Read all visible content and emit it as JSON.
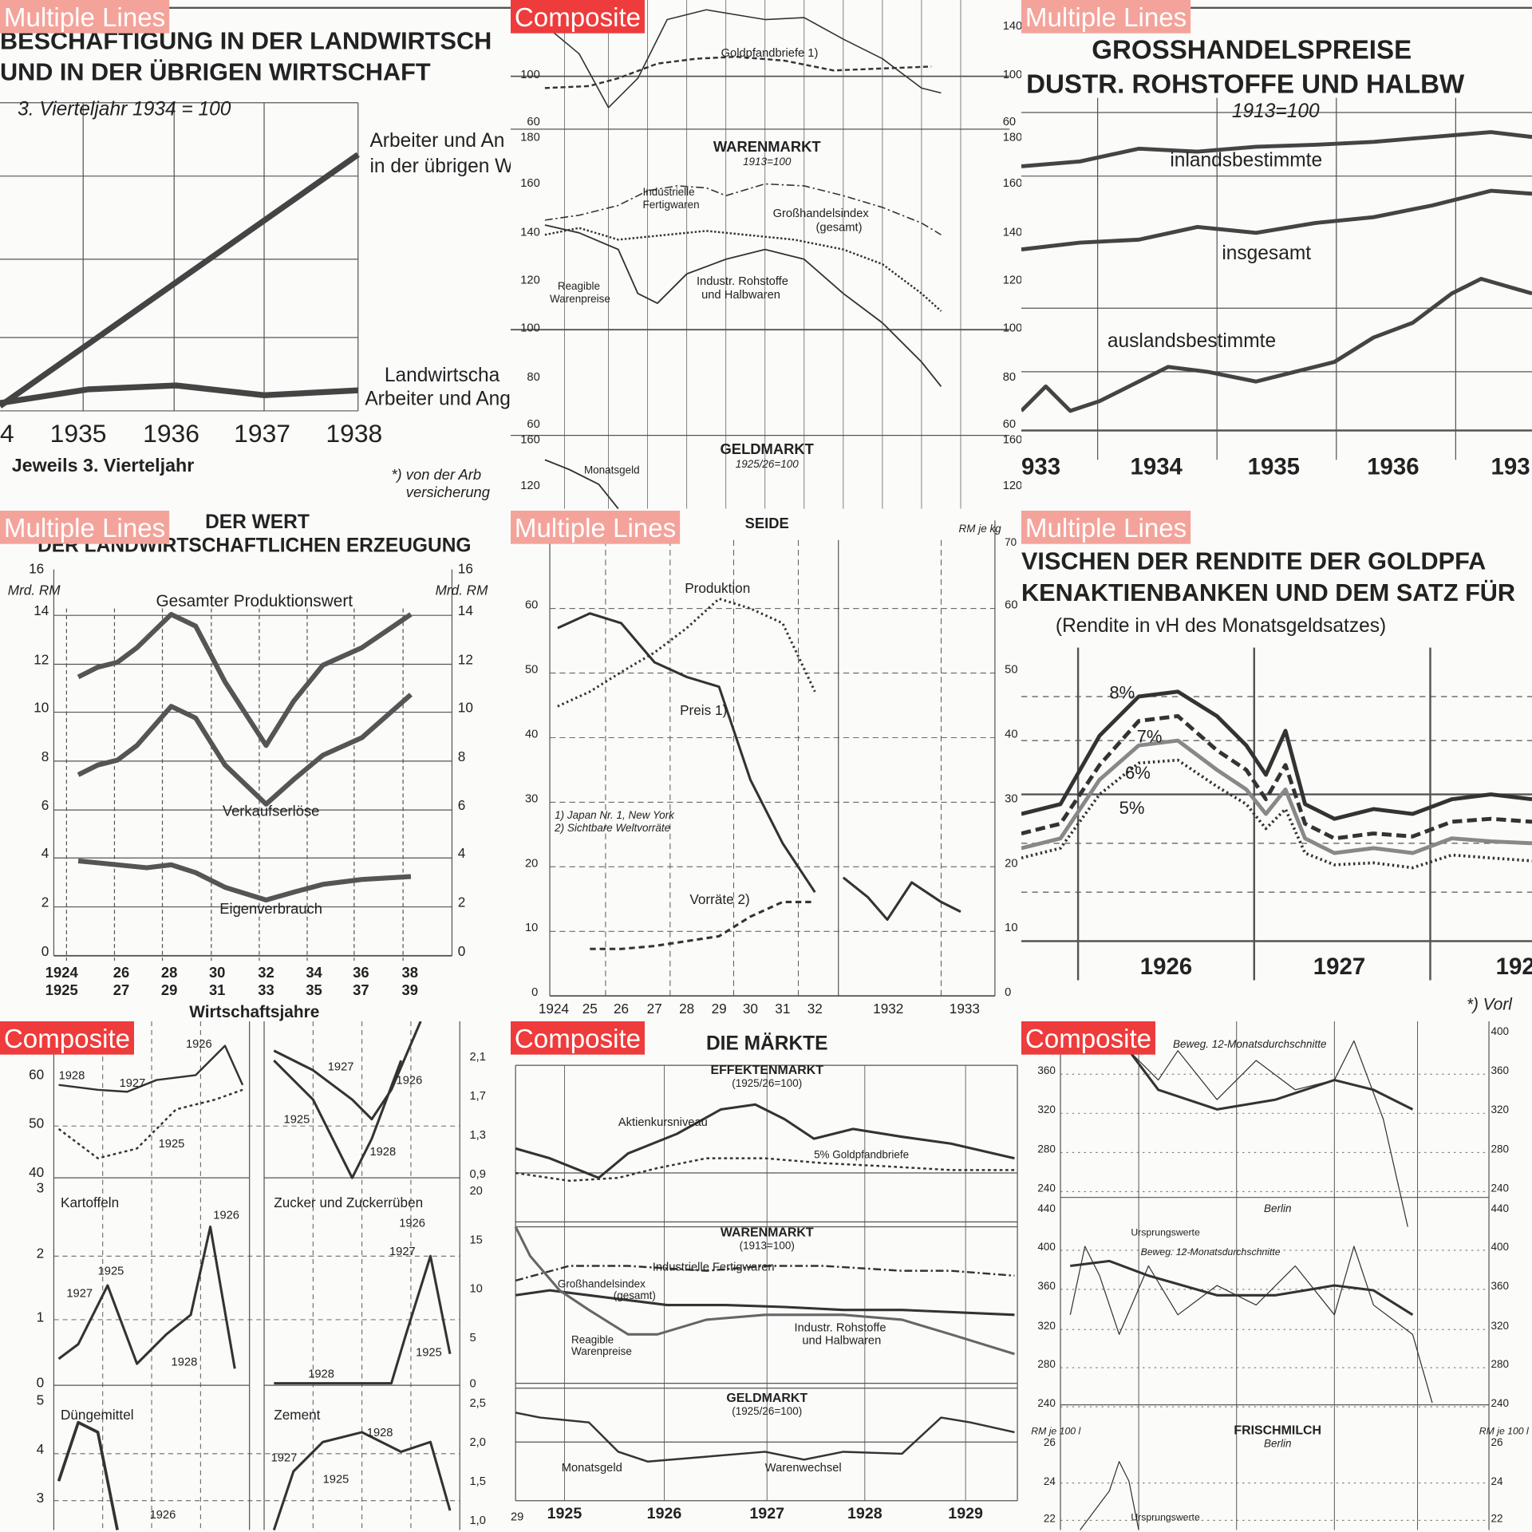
{
  "tiles": [
    {
      "label": "Multiple Lines",
      "label_color": "#f4a39b",
      "texts": [
        "BESCHÄFTIGUNG IN DER LANDWIRTSCH",
        "UND IN DER ÜBRIGEN WIRTSCHAFT",
        "3. Vierteljahr 1934 = 100",
        "Arbeiter und An",
        "in der übrigen W",
        "Landwirtscha",
        "Arbeiter und Ang",
        "4",
        "1935",
        "1936",
        "1937",
        "1938",
        "Jeweils 3. Vierteljahr",
        "*) von der Arb",
        "versicherung"
      ]
    },
    {
      "label": "Composite",
      "label_color": "#ee3b3b",
      "texts": [
        "Goldpfandbriefe 1)",
        "140",
        "100",
        "60",
        "100",
        "60",
        "WARENMARKT",
        "1913=100",
        "Industrielle",
        "Fertigwaren",
        "Großhandelsindex",
        "(gesamt)",
        "Reagible",
        "Warenpreise",
        "Industr. Rohstoffe",
        "und Halbwaren",
        "180",
        "160",
        "140",
        "120",
        "100",
        "80",
        "60",
        "180",
        "160",
        "140",
        "120",
        "100",
        "80",
        "60",
        "GELDMARKT",
        "1925/26=100",
        "Monatsgeld",
        "160",
        "120",
        "160",
        "120"
      ]
    },
    {
      "label": "Multiple Lines",
      "label_color": "#f4a39b",
      "texts": [
        "GROSSHANDELSPREISE",
        "DUSTR. ROHSTOFFE UND HALBW",
        "1913=100",
        "inlandsbestimmte",
        "insgesamt",
        "auslandsbestimmte",
        "933",
        "1934",
        "1935",
        "1936",
        "193"
      ]
    },
    {
      "label": "Multiple Lines",
      "label_color": "#f4a39b",
      "texts": [
        "DER WERT",
        "DER LANDWIRTSCHAFTLICHEN ERZEUGUNG",
        "16",
        "Mrd. RM",
        "16",
        "Mrd. RM",
        "Gesamter Produktionswert",
        "14",
        "12",
        "10",
        "8",
        "6",
        "4",
        "2",
        "0",
        "14",
        "12",
        "10",
        "8",
        "6",
        "4",
        "2",
        "0",
        "Verkaufserlöse",
        "Eigenverbrauch",
        "1924",
        "1925",
        "26",
        "27",
        "28",
        "29",
        "30",
        "31",
        "32",
        "33",
        "34",
        "35",
        "36",
        "37",
        "38",
        "39",
        "Wirtschaftsjahre"
      ]
    },
    {
      "label": "Multiple Lines",
      "label_color": "#f4a39b",
      "texts": [
        "SEIDE",
        "RM je kg",
        "70",
        "60",
        "50",
        "40",
        "30",
        "20",
        "10",
        "0",
        "60",
        "50",
        "40",
        "30",
        "20",
        "10",
        "0",
        "Produktion",
        "Preis 1)",
        "Vorräte 2)",
        "1) Japan Nr. 1, New York",
        "2) Sichtbare Weltvorräte",
        "1924",
        "25",
        "26",
        "27",
        "28",
        "29",
        "30",
        "31",
        "32",
        "1932",
        "1933"
      ]
    },
    {
      "label": "Multiple Lines",
      "label_color": "#f4a39b",
      "texts": [
        "VISCHEN DER RENDITE DER GOLDPFA",
        "KENAKTIENBANKEN UND DEM SATZ FÜR",
        "(Rendite in vH des Monatsgeldsatzes)",
        "8%",
        "7%",
        "6%",
        "5%",
        "1926",
        "1927",
        "192",
        "*) Vorl"
      ]
    },
    {
      "label": "Composite",
      "label_color": "#ee3b3b",
      "texts": [
        "60",
        "50",
        "40",
        "1926",
        "1928",
        "1927",
        "1925",
        "2,1",
        "1,7",
        "1,3",
        "0,9",
        "1927",
        "1926",
        "1925",
        "1928",
        "3",
        "Kartoffeln",
        "2",
        "1",
        "0",
        "1925",
        "1927",
        "1926",
        "1928",
        "Zucker und Zuckerrüben",
        "20",
        "15",
        "10",
        "5",
        "0",
        "1926",
        "1927",
        "1925",
        "1928",
        "5",
        "Düngemittel",
        "4",
        "3",
        "1926",
        "Zement",
        "2,5",
        "2,0",
        "1,5",
        "1,0",
        "1928",
        "1927",
        "1925"
      ]
    },
    {
      "label": "Composite",
      "label_color": "#ee3b3b",
      "texts": [
        "DIE MÄRKTE",
        "EFFEKTENMARKT",
        "(1925/26=100)",
        "Aktienkursniveau",
        "5% Goldpfandbriefe",
        "WARENMARKT",
        "(1913=100)",
        "Industrielle Fertigwaren",
        "Großhandelsindex",
        "(gesamt)",
        "Reagible",
        "Warenpreise",
        "Industr. Rohstoffe",
        "und Halbwaren",
        "GELDMARKT",
        "(1925/26=100)",
        "Monatsgeld",
        "Warenwechsel",
        "29",
        "1925",
        "1926",
        "1927",
        "1928",
        "1929"
      ]
    },
    {
      "label": "Composite",
      "label_color": "#ee3b3b",
      "texts": [
        "Beweg. 12-Monatsdurchschnitte",
        "360",
        "320",
        "280",
        "240",
        "400",
        "360",
        "320",
        "280",
        "240",
        "Berlin",
        "440",
        "400",
        "360",
        "320",
        "280",
        "240",
        "440",
        "400",
        "360",
        "320",
        "280",
        "240",
        "Ursprungswerte",
        "Beweg. 12-Monatsdurchschnitte",
        "RM je 100 l",
        "26",
        "FRISCHMILCH",
        "Berlin",
        "RM je 100 l",
        "26",
        "24",
        "24",
        "22",
        "22",
        "Ursprungswerte"
      ]
    }
  ]
}
